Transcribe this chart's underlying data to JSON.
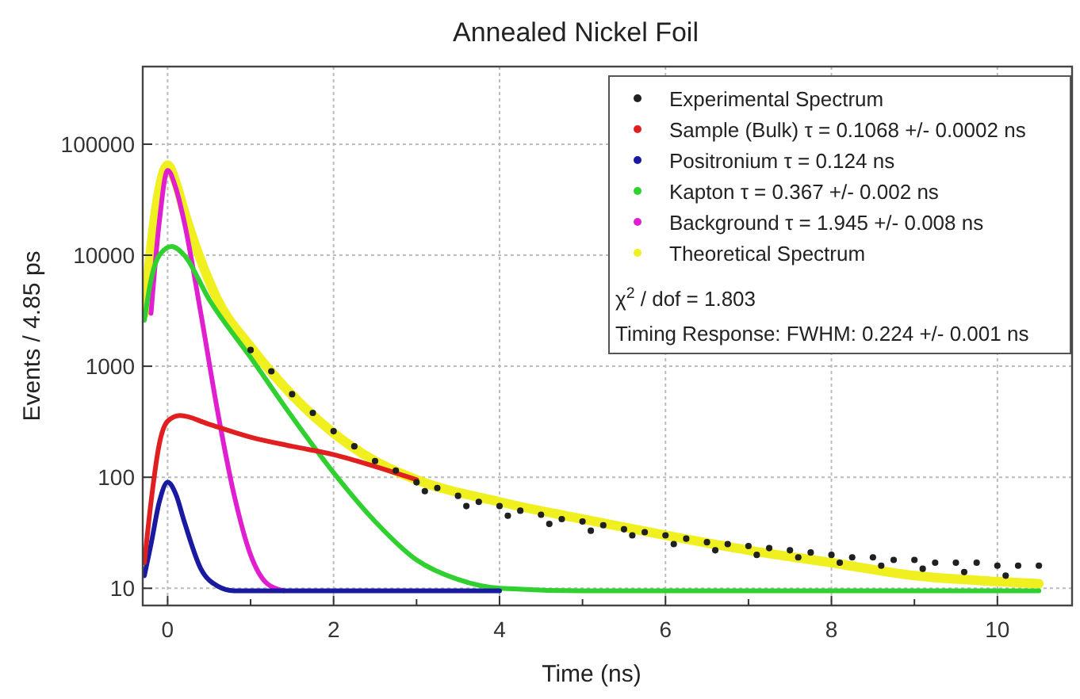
{
  "chart_data": {
    "type": "line",
    "title": "Annealed Nickel Foil",
    "xlabel": "Time (ns)",
    "ylabel": "Events / 4.85 ps",
    "log": "y",
    "grid": true,
    "legend": "top right",
    "marker": "none",
    "line_style": "solid",
    "xlim": [
      -0.3,
      10.9
    ],
    "xticks": [
      0,
      {
        "value": 1,
        "label": null
      },
      2,
      {
        "value": 3,
        "label": null
      },
      4,
      {
        "value": 5,
        "label": null
      },
      6,
      {
        "value": 7,
        "label": null
      },
      8,
      {
        "value": 9,
        "label": null
      },
      10
    ],
    "ylim": [
      7,
      500000
    ],
    "yticks": [
      10,
      100,
      1000,
      10000,
      100000
    ],
    "annotations": [
      "χ$^{2}$ / dof = 1.803",
      "Timing Response: FWHM: 0.224 +/- 0.001 ns"
    ],
    "series": [
      {
        "name": "Experimental Spectrum",
        "type": "scatter",
        "marker": "circle",
        "color": "#202020",
        "x": [
          1.0,
          1.25,
          1.5,
          1.75,
          2.0,
          2.25,
          2.5,
          2.75,
          3.0,
          3.25,
          3.5,
          3.75,
          4.0,
          4.25,
          4.5,
          4.75,
          5.0,
          5.25,
          5.5,
          5.75,
          6.0,
          6.25,
          6.5,
          6.75,
          7.0,
          7.25,
          7.5,
          7.75,
          8.0,
          8.25,
          8.5,
          8.75,
          9.0,
          9.25,
          9.5,
          9.75,
          10.0,
          10.25,
          10.5,
          3.1,
          3.6,
          4.1,
          4.6,
          5.1,
          5.6,
          6.1,
          6.6,
          7.1,
          7.6,
          8.1,
          8.6,
          9.1,
          9.6,
          10.1
        ],
        "values": [
          1400,
          900,
          560,
          380,
          260,
          190,
          140,
          115,
          90,
          80,
          68,
          60,
          55,
          50,
          46,
          42,
          40,
          37,
          34,
          32,
          30,
          28,
          26,
          25,
          24,
          23,
          22,
          21,
          20,
          19,
          19,
          18,
          18,
          17,
          17,
          17,
          16,
          16,
          16,
          75,
          55,
          45,
          38,
          33,
          30,
          25,
          22,
          20,
          19,
          17,
          16,
          15,
          14,
          13
        ]
      },
      {
        "name": "Sample (Bulk) τ = 0.1068 +/- 0.0002 ns",
        "color": "#e02020",
        "x": [
          -0.28,
          -0.2,
          -0.1,
          0,
          0.15,
          0.5,
          1,
          1.5,
          2,
          2.5,
          3
        ],
        "values": [
          17,
          60,
          200,
          320,
          360,
          300,
          230,
          190,
          160,
          125,
          95
        ]
      },
      {
        "name": "Positronium τ = 0.124 ns",
        "color": "#1a1aa0",
        "x": [
          -0.28,
          -0.2,
          -0.1,
          0,
          0.1,
          0.2,
          0.4,
          0.6,
          0.8,
          1.5,
          4
        ],
        "values": [
          13,
          25,
          60,
          90,
          70,
          40,
          15,
          10.5,
          9.5,
          9.5,
          9.5
        ]
      },
      {
        "name": "Kapton τ = 0.367 +/- 0.002 ns",
        "color": "#30d030",
        "x": [
          -0.28,
          -0.2,
          -0.1,
          0.05,
          0.2,
          0.5,
          1,
          1.5,
          2,
          2.5,
          3,
          3.5,
          4,
          5,
          7,
          10.5
        ],
        "values": [
          2600,
          6000,
          10000,
          12000,
          10000,
          4000,
          1200,
          350,
          110,
          40,
          18,
          12,
          10,
          9.5,
          9.5,
          9.5
        ]
      },
      {
        "name": "Background τ = 1.945 +/- 0.008 ns",
        "color": "#e020d0",
        "x": [
          -0.2,
          -0.1,
          0,
          0.1,
          0.2,
          0.4,
          0.6,
          0.8,
          1.0,
          1.2,
          1.4
        ],
        "values": [
          3000,
          20000,
          58000,
          40000,
          20000,
          3000,
          400,
          70,
          20,
          11,
          9.5
        ]
      },
      {
        "name": "Theoretical Spectrum",
        "color": "#f0f020",
        "x": [
          -0.28,
          -0.2,
          -0.1,
          0,
          0.1,
          0.2,
          0.4,
          0.6,
          1.0,
          1.5,
          2,
          2.5,
          3,
          4,
          5,
          6,
          7,
          8,
          9,
          10,
          10.5
        ],
        "values": [
          3000,
          12000,
          40000,
          65000,
          45000,
          25000,
          9000,
          4000,
          1500,
          550,
          250,
          140,
          95,
          60,
          42,
          30,
          22,
          17,
          13,
          11.5,
          11
        ]
      }
    ]
  }
}
